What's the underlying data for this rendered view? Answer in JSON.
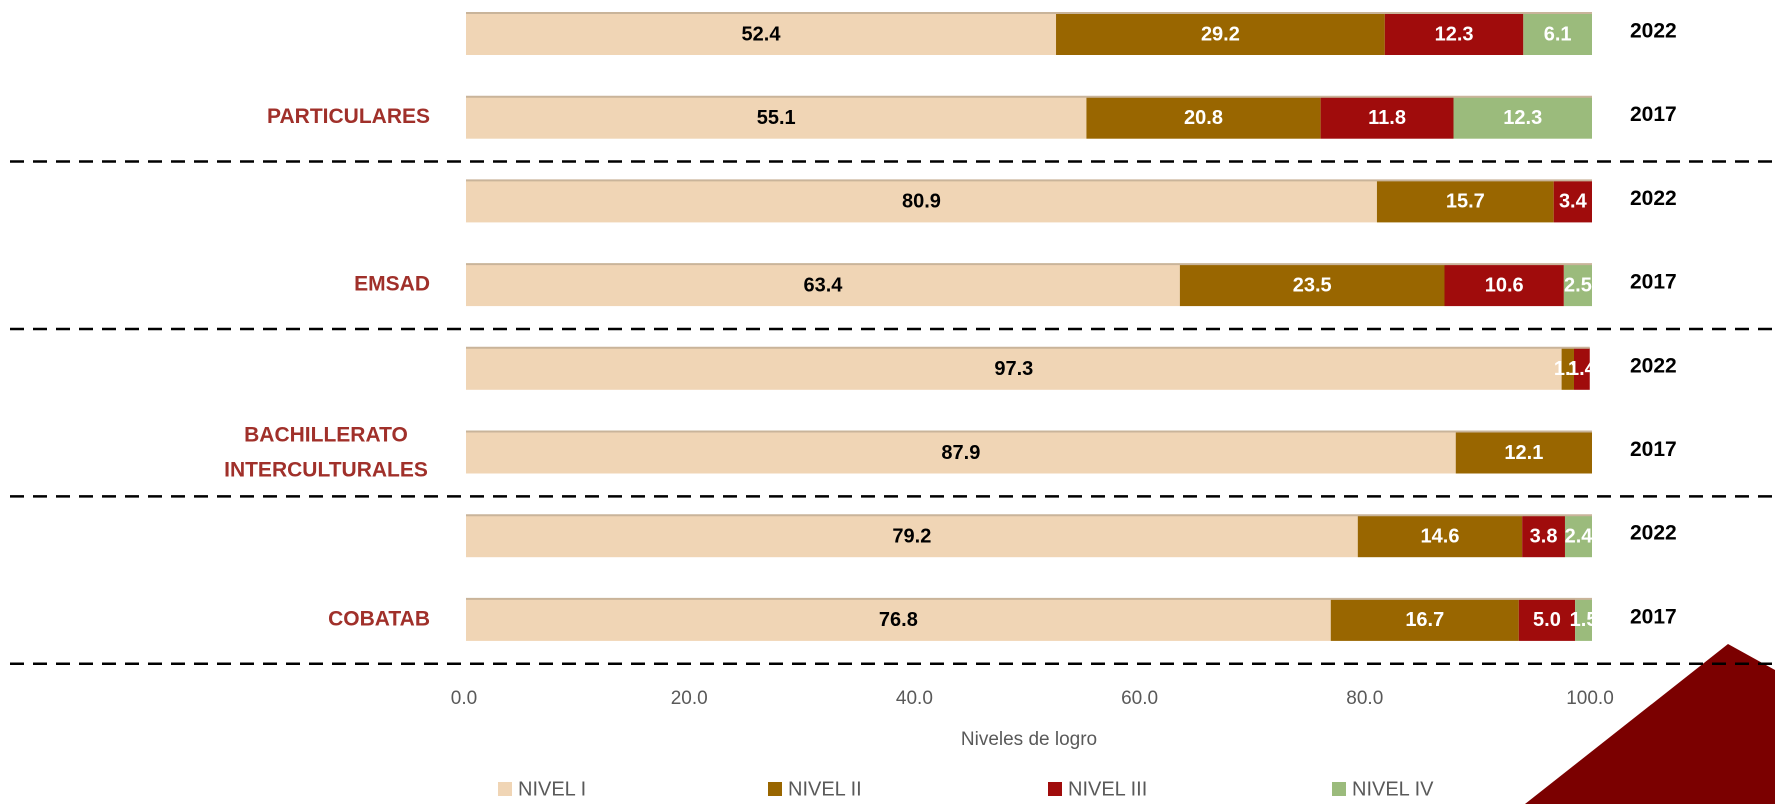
{
  "chart_data": {
    "type": "stacked-bar",
    "orientation": "horizontal",
    "groups": [
      "PARTICULARES",
      "EMSAD",
      "BACHILLERATO INTERCULTURALES",
      "COBATAB"
    ],
    "categories": [
      "2022",
      "2017",
      "2022",
      "2017",
      "2022",
      "2017",
      "2022",
      "2017"
    ],
    "series": [
      {
        "name": "NIVEL I",
        "color": "#f0d5b5",
        "values": [
          52.4,
          55.1,
          80.9,
          63.4,
          97.3,
          87.9,
          79.2,
          76.8
        ],
        "value_labels": [
          "52.4",
          "55.1",
          "80.9",
          "63.4",
          "97.3",
          "87.9",
          "79.2",
          "76.8"
        ]
      },
      {
        "name": "NIVEL II",
        "color": "#996600",
        "values": [
          29.2,
          20.8,
          15.7,
          23.5,
          1.1,
          12.1,
          14.6,
          16.7
        ],
        "value_labels": [
          "29.2",
          "20.8",
          "15.7",
          "23.5",
          "1.1",
          "12.1",
          "14.6",
          "16.7"
        ]
      },
      {
        "name": "NIVEL III",
        "color": "#a00c0c",
        "values": [
          12.3,
          11.8,
          3.4,
          10.6,
          1.4,
          null,
          3.8,
          5.0
        ],
        "value_labels": [
          "12.3",
          "11.8",
          "3.4",
          "10.6",
          "1.4",
          null,
          "3.8",
          "5.0"
        ]
      },
      {
        "name": "NIVEL IV",
        "color": "#9bbb7c",
        "values": [
          6.1,
          12.3,
          null,
          2.5,
          null,
          null,
          2.4,
          1.5
        ],
        "value_labels": [
          "6.1",
          "12.3",
          null,
          "2.5",
          null,
          null,
          "2.4",
          "1.5"
        ]
      }
    ],
    "x_label": "Niveles de logro",
    "xlim": [
      0,
      100
    ],
    "xticks": [
      {
        "value": 0,
        "label": "0.0"
      },
      {
        "value": 20,
        "label": "20.0"
      },
      {
        "value": 40,
        "label": "40.0"
      },
      {
        "value": 60,
        "label": "60.0"
      },
      {
        "value": 80,
        "label": "80.0"
      },
      {
        "value": 100,
        "label": "100.0"
      }
    ],
    "grid": false,
    "legend": "bottom"
  }
}
